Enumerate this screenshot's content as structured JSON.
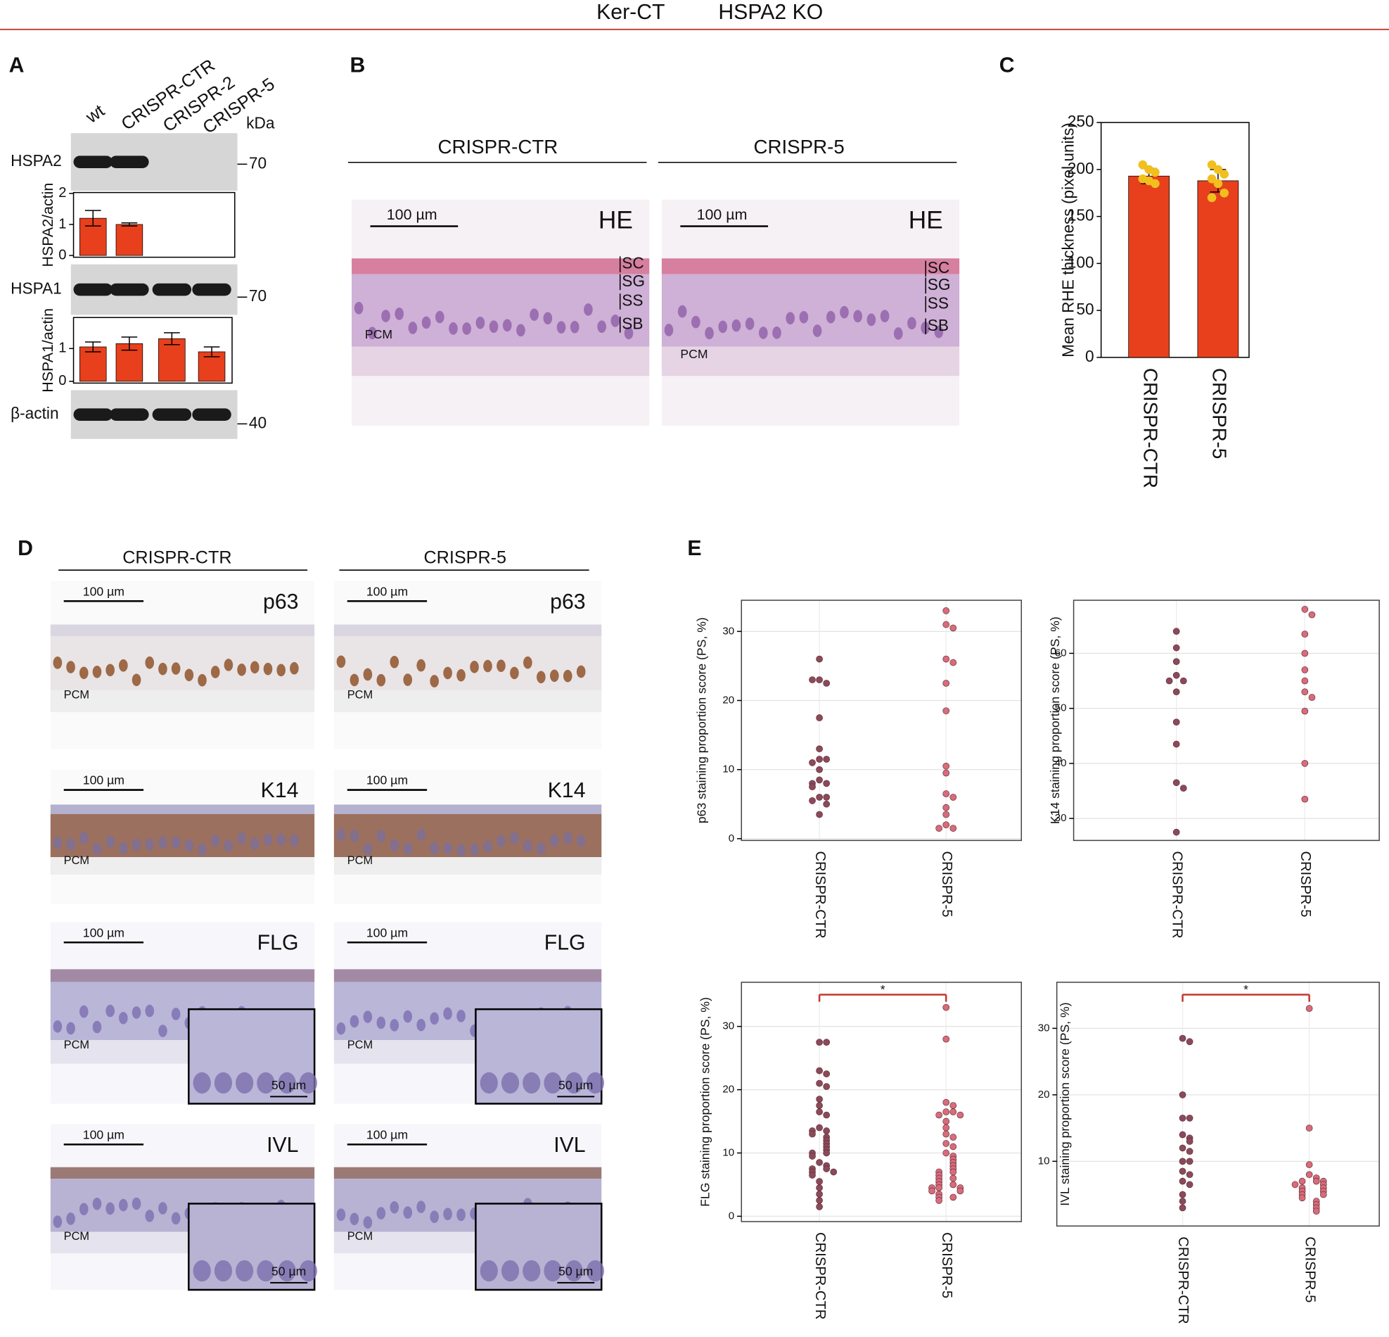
{
  "header": {
    "left": "Ker-CT",
    "right": "HSPA2 KO"
  },
  "panel_a": {
    "label": "A",
    "lanes": [
      "wt",
      "CRISPR-CTR",
      "CRISPR-2",
      "CRISPR-5"
    ],
    "unit": "kDa",
    "blots": [
      {
        "name": "HSPA2",
        "marker": "70"
      },
      {
        "name": "HSPA1",
        "marker": "70"
      },
      {
        "name": "β-actin",
        "marker": "40"
      }
    ]
  },
  "panel_b": {
    "label": "B",
    "groups": [
      "CRISPR-CTR",
      "CRISPR-5"
    ],
    "scale": "100 µm",
    "stain": "HE",
    "layers": [
      "SC",
      "SG",
      "SS",
      "SB"
    ],
    "matrix": "PCM"
  },
  "panel_d": {
    "label": "D",
    "groups": [
      "CRISPR-CTR",
      "CRISPR-5"
    ],
    "scale": "100 µm",
    "inset_scale": "50 µm",
    "stains": [
      "p63",
      "K14",
      "FLG",
      "IVL"
    ],
    "matrix": "PCM"
  },
  "chart_data": [
    {
      "type": "bar",
      "ylabel": "HSPA2/actin",
      "values": [
        1.2,
        1.0,
        0,
        0
      ],
      "errors": [
        0.25,
        0.05,
        0,
        0
      ],
      "ylim": [
        0,
        2
      ],
      "yticks": [
        0,
        1,
        2
      ],
      "color": "#e8401c"
    },
    {
      "type": "bar",
      "ylabel": "HSPA1/actin",
      "values": [
        1.05,
        1.15,
        1.3,
        0.9
      ],
      "errors": [
        0.15,
        0.2,
        0.18,
        0.15
      ],
      "ylim": [
        0,
        1.8
      ],
      "yticks": [
        0,
        1
      ],
      "color": "#e8401c"
    },
    {
      "type": "bar",
      "panel": "C",
      "ylabel": "Mean RHE thickness (pixel units)",
      "categories": [
        "CRISPR-CTR",
        "CRISPR-5"
      ],
      "values": [
        193,
        188
      ],
      "errors": [
        8,
        12
      ],
      "points": [
        [
          205,
          200,
          197,
          190,
          188,
          185
        ],
        [
          205,
          200,
          195,
          190,
          185,
          175,
          170
        ]
      ],
      "point_color": "#f2c01e",
      "ylim": [
        0,
        250
      ],
      "yticks": [
        0,
        50,
        100,
        150,
        200,
        250
      ],
      "color": "#e8401c"
    },
    {
      "type": "dotplot",
      "panel": "E",
      "ylabel": "p63 staining proportion score (PS, %)",
      "categories": [
        "CRISPR-CTR",
        "CRISPR-5"
      ],
      "colors": [
        "#8b4a5a",
        "#d96b7a"
      ],
      "values": [
        [
          26,
          23,
          22.5,
          23,
          17.5,
          13,
          11.5,
          11.5,
          11,
          10,
          8.5,
          8,
          8,
          7.5,
          6,
          6,
          5.5,
          5,
          3.5
        ],
        [
          33,
          31,
          30.5,
          26,
          25.5,
          22.5,
          18.5,
          10.5,
          9.5,
          6.5,
          6,
          4.5,
          3.5,
          2,
          1.5,
          1.5
        ]
      ],
      "ylim": [
        0,
        34
      ],
      "yticks": [
        0,
        10,
        20,
        30
      ],
      "grid": true
    },
    {
      "type": "dotplot",
      "ylabel": "K14 staining proportion score (PS, %)",
      "categories": [
        "CRISPR-CTR",
        "CRISPR-5"
      ],
      "colors": [
        "#8b4a5a",
        "#d96b7a"
      ],
      "values": [
        [
          64,
          61,
          58.5,
          56,
          55,
          55,
          53,
          47.5,
          43.5,
          36.5,
          35.5,
          27.5
        ],
        [
          68,
          67,
          63.5,
          60,
          57,
          55,
          53,
          52,
          49.5,
          40,
          33.5
        ]
      ],
      "ylim": [
        26,
        69
      ],
      "yticks": [
        30,
        40,
        50,
        60
      ],
      "grid": true
    },
    {
      "type": "dotplot",
      "ylabel": "FLG staining proportion score (PS, %)",
      "categories": [
        "CRISPR-CTR",
        "CRISPR-5"
      ],
      "colors": [
        "#8b4a5a",
        "#d96b7a"
      ],
      "values": [
        [
          27.5,
          27.5,
          23,
          22.5,
          21,
          20.5,
          18.5,
          17.5,
          16.5,
          16,
          14,
          13.5,
          13.5,
          13,
          12.5,
          12,
          11.5,
          11,
          10.5,
          10,
          10,
          9.5,
          8.5,
          8,
          7.5,
          7.5,
          7,
          7,
          6.5,
          5.5,
          4.5,
          3.5,
          2.5,
          1.5
        ],
        [
          33,
          28,
          18,
          17.5,
          16.5,
          16.5,
          16,
          16,
          15,
          14,
          13,
          12.5,
          11.5,
          11,
          10,
          9.5,
          9,
          8.5,
          8,
          7.5,
          7,
          7,
          6.5,
          6,
          6,
          5.5,
          5,
          5,
          4.5,
          4.5,
          4.5,
          4,
          4,
          3.5,
          3,
          3,
          2.5
        ]
      ],
      "ylim": [
        0,
        36
      ],
      "yticks": [
        0,
        10,
        20,
        30
      ],
      "grid": true,
      "significance": "*"
    },
    {
      "type": "dotplot",
      "ylabel": "IVL staining proportion score (PS, %)",
      "categories": [
        "CRISPR-CTR",
        "CRISPR-5"
      ],
      "colors": [
        "#8b4a5a",
        "#d96b7a"
      ],
      "values": [
        [
          28.5,
          28,
          20,
          16.5,
          16.5,
          14,
          13.5,
          13,
          12,
          11.5,
          10,
          10,
          8.5,
          8,
          7,
          6.5,
          5,
          4,
          3
        ],
        [
          33,
          15,
          9.5,
          8,
          7.5,
          7,
          7,
          7,
          6.5,
          6.5,
          6,
          6,
          5.5,
          5.5,
          5,
          5,
          4.5,
          4,
          3.5,
          3,
          2.5
        ]
      ],
      "ylim": [
        1,
        36
      ],
      "yticks": [
        10,
        20,
        30
      ],
      "grid": true,
      "significance": "*"
    }
  ]
}
